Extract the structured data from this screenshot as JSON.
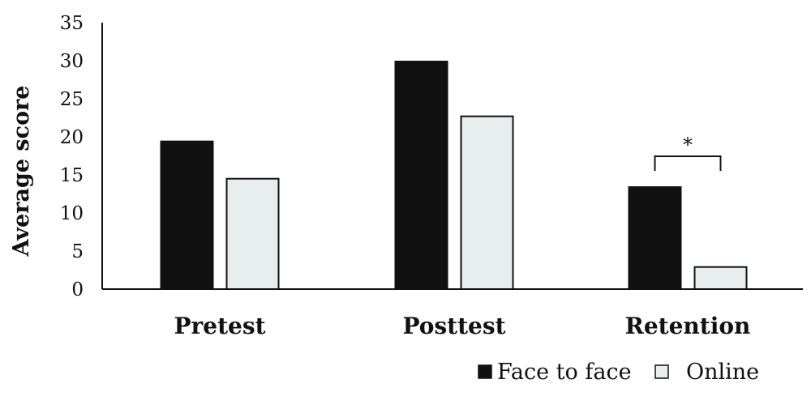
{
  "chart_data": {
    "type": "bar",
    "ylabel": "Average score",
    "ylim": [
      0,
      35
    ],
    "yticks": [
      0,
      5,
      10,
      15,
      20,
      25,
      30,
      35
    ],
    "categories": [
      "Pretest",
      "Posttest",
      "Retention"
    ],
    "series": [
      {
        "name": "Face to face",
        "values": [
          19.4,
          29.9,
          13.4
        ],
        "color": "#111111"
      },
      {
        "name": "Online",
        "values": [
          14.5,
          22.7,
          2.9
        ],
        "color": "#e8eded"
      }
    ],
    "grid": false,
    "legend": "bottom-right",
    "annotations": [
      {
        "category": "Retention",
        "text": "*",
        "type": "significance-bracket"
      }
    ]
  }
}
